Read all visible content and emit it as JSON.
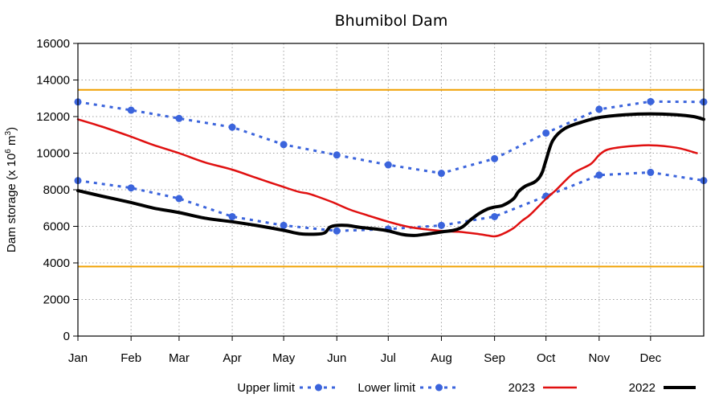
{
  "chart_data": {
    "type": "line",
    "title": "Bhumibol Dam",
    "xlabel": "",
    "ylabel": "Dam storage (x 10",
    "ylabel_sup": "6",
    "ylabel_tail": " m",
    "ylabel_sup2": "3",
    "ylabel_close": ")",
    "ylim": [
      0,
      16000
    ],
    "yticks": [
      0,
      2000,
      4000,
      6000,
      8000,
      10000,
      12000,
      14000,
      16000
    ],
    "ytick_labels": [
      "0",
      "2000",
      "4000",
      "6000",
      "8000",
      "10000",
      "12000",
      "14000",
      "16000"
    ],
    "xlim": [
      1,
      366
    ],
    "xticks": [
      1,
      32,
      60,
      91,
      121,
      152,
      182,
      213,
      244,
      274,
      305,
      335
    ],
    "xtick_labels": [
      "Jan",
      "Feb",
      "Mar",
      "Apr",
      "May",
      "Jun",
      "Jul",
      "Aug",
      "Sep",
      "Oct",
      "Nov",
      "Dec"
    ],
    "grid": true,
    "hlines": [
      {
        "y": 13460,
        "color": "#f0a000"
      },
      {
        "y": 3800,
        "color": "#f0a000"
      }
    ],
    "legend_position": "bottom",
    "series": [
      {
        "name": "Upper limit",
        "style": "dotted-markers",
        "color": "#3b64dc",
        "x": [
          1,
          32,
          60,
          91,
          121,
          152,
          182,
          213,
          244,
          274,
          305,
          335,
          366
        ],
        "y": [
          12800,
          12350,
          11900,
          11420,
          10470,
          9900,
          9360,
          8900,
          9700,
          11100,
          12400,
          12820,
          12800
        ]
      },
      {
        "name": "Lower limit",
        "style": "dotted-markers",
        "color": "#3b64dc",
        "x": [
          1,
          32,
          60,
          91,
          121,
          152,
          182,
          213,
          244,
          274,
          305,
          335,
          366
        ],
        "y": [
          8500,
          8100,
          7520,
          6530,
          6050,
          5750,
          5850,
          6050,
          6530,
          7650,
          8800,
          8950,
          8500
        ]
      },
      {
        "name": "2023",
        "style": "solid",
        "color": "#e01010",
        "x": [
          1,
          15,
          32,
          45,
          60,
          75,
          91,
          105,
          121,
          130,
          135,
          140,
          150,
          160,
          170,
          182,
          195,
          213,
          223,
          233,
          240,
          244,
          248,
          255,
          260,
          265,
          274,
          280,
          290,
          300,
          305,
          310,
          320,
          335,
          350,
          362
        ],
        "y": [
          11850,
          11450,
          10900,
          10450,
          10000,
          9500,
          9100,
          8650,
          8150,
          7880,
          7800,
          7650,
          7300,
          6900,
          6600,
          6250,
          5950,
          5750,
          5700,
          5600,
          5500,
          5450,
          5550,
          5900,
          6300,
          6650,
          7500,
          8000,
          8900,
          9400,
          9900,
          10200,
          10350,
          10430,
          10300,
          10000
        ]
      },
      {
        "name": "2022",
        "style": "solid-thick",
        "color": "#000000",
        "x": [
          1,
          15,
          32,
          45,
          60,
          75,
          91,
          105,
          121,
          130,
          140,
          145,
          148,
          152,
          158,
          165,
          175,
          182,
          190,
          197,
          203,
          210,
          215,
          220,
          225,
          230,
          235,
          240,
          244,
          249,
          255,
          258,
          262,
          267,
          270,
          272,
          274,
          278,
          285,
          295,
          305,
          320,
          335,
          350,
          360,
          366
        ],
        "y": [
          7950,
          7650,
          7300,
          7000,
          6750,
          6450,
          6250,
          6050,
          5780,
          5600,
          5570,
          5650,
          5950,
          6050,
          6050,
          5950,
          5850,
          5750,
          5560,
          5500,
          5560,
          5650,
          5720,
          5780,
          5950,
          6350,
          6700,
          6950,
          7050,
          7150,
          7500,
          7900,
          8200,
          8400,
          8650,
          9000,
          9600,
          10700,
          11350,
          11700,
          11950,
          12100,
          12150,
          12100,
          12000,
          11850
        ]
      }
    ]
  }
}
